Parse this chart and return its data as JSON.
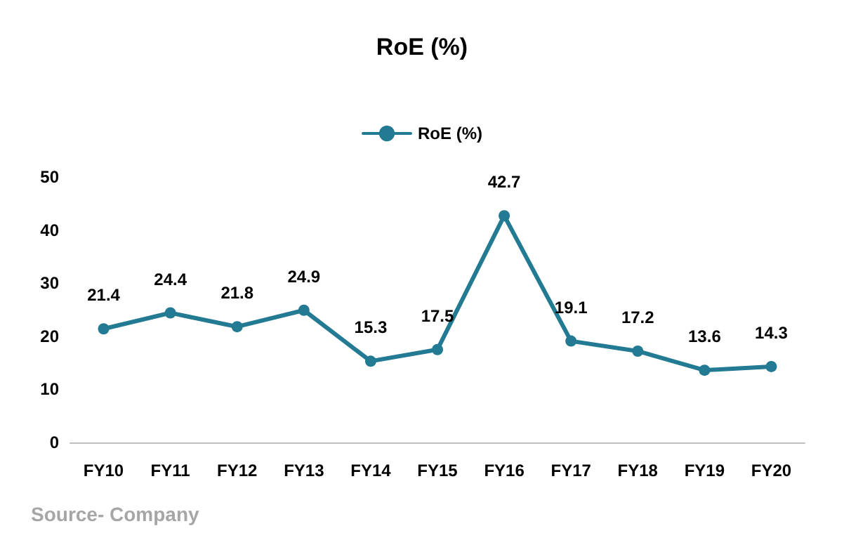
{
  "chart_data": {
    "type": "line",
    "title": "RoE (%)",
    "categories": [
      "FY10",
      "FY11",
      "FY12",
      "FY13",
      "FY14",
      "FY15",
      "FY16",
      "FY17",
      "FY18",
      "FY19",
      "FY20"
    ],
    "series": [
      {
        "name": "RoE (%)",
        "color": "#237a93",
        "values": [
          21.4,
          24.4,
          21.8,
          24.9,
          15.3,
          17.5,
          42.7,
          19.1,
          17.2,
          13.6,
          14.3
        ]
      }
    ],
    "ylim": [
      0,
      50
    ],
    "yticks": [
      0,
      10,
      20,
      30,
      40,
      50
    ],
    "grid": false,
    "legend": "top",
    "marker": "circle",
    "line_style": "solid",
    "data_labels": true,
    "annotations": [
      "Source- Company"
    ]
  }
}
